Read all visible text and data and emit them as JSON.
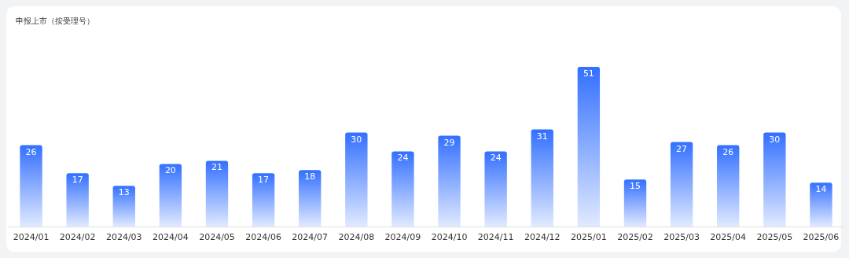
{
  "chart_data": {
    "type": "bar",
    "title": "申报上市（按受理号）",
    "categories": [
      "2024/01",
      "2024/02",
      "2024/03",
      "2024/04",
      "2024/05",
      "2024/06",
      "2024/07",
      "2024/08",
      "2024/09",
      "2024/10",
      "2024/11",
      "2024/12",
      "2025/01",
      "2025/02",
      "2025/03",
      "2025/04",
      "2025/05",
      "2025/06"
    ],
    "values": [
      26,
      17,
      13,
      20,
      21,
      17,
      18,
      30,
      24,
      29,
      24,
      31,
      51,
      15,
      27,
      26,
      30,
      14
    ],
    "color": "#3370ff",
    "data_labels": true
  }
}
